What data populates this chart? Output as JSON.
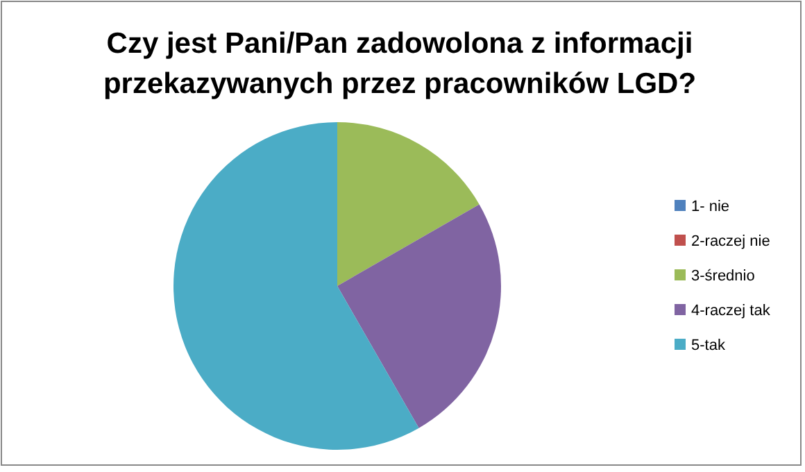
{
  "chart_data": {
    "type": "pie",
    "title": "Czy jest Pani/Pan zadowolona z informacji przekazywanych przez pracowników LGD?",
    "categories": [
      "1- nie",
      "2-raczej nie",
      "3-średnio",
      "4-raczej tak",
      "5-tak"
    ],
    "values": [
      0,
      0,
      16.7,
      25,
      58.3
    ],
    "colors": [
      "#4f81bd",
      "#c0504d",
      "#9bbb59",
      "#8064a2",
      "#4bacc6"
    ],
    "legend": "right"
  }
}
